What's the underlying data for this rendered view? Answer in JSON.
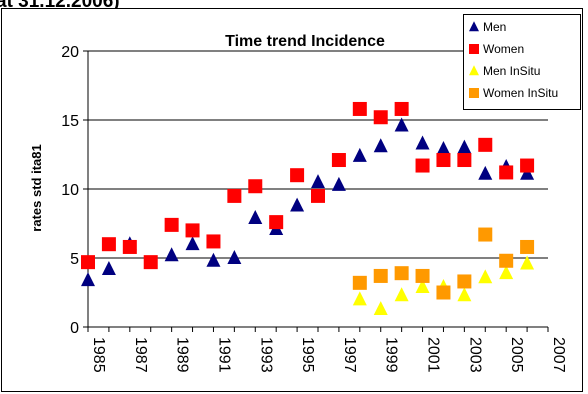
{
  "header": {
    "clipped_text": "at 31.12.2006)"
  },
  "chart_data": {
    "type": "scatter",
    "title": "Time trend Incidence",
    "ylabel": "rates std ita81",
    "xlabel": "",
    "ylim": [
      0,
      20
    ],
    "xlim": [
      1985,
      2007
    ],
    "y_ticks": [
      "0",
      "5",
      "10",
      "15",
      "20"
    ],
    "x_ticks": [
      "1985",
      "1987",
      "1989",
      "1991",
      "1993",
      "1995",
      "1997",
      "1999",
      "2001",
      "2003",
      "2005",
      "2007"
    ],
    "grid": "horizontal",
    "legend_position": "top-right",
    "series": [
      {
        "name": "Men",
        "marker": "triangle",
        "color": "#000080",
        "x": [
          1985,
          1986,
          1987,
          1989,
          1990,
          1991,
          1992,
          1993,
          1994,
          1995,
          1996,
          1997,
          1998,
          1999,
          2000,
          2001,
          2002,
          2003,
          2004,
          2005,
          2006
        ],
        "y": [
          3.4,
          4.2,
          6.0,
          5.2,
          6.0,
          4.8,
          5.0,
          7.9,
          7.1,
          8.8,
          10.5,
          10.3,
          12.4,
          13.1,
          14.6,
          13.3,
          12.9,
          13.0,
          11.1,
          11.6,
          11.1
        ]
      },
      {
        "name": "Women",
        "marker": "square",
        "color": "#ff0000",
        "x": [
          1985,
          1986,
          1987,
          1988,
          1989,
          1990,
          1991,
          1992,
          1993,
          1994,
          1995,
          1996,
          1997,
          1998,
          1999,
          2000,
          2001,
          2002,
          2003,
          2004,
          2005,
          2006
        ],
        "y": [
          4.7,
          6.0,
          5.8,
          4.7,
          7.4,
          7.0,
          6.2,
          9.5,
          10.2,
          7.6,
          11.0,
          9.5,
          12.1,
          15.8,
          15.2,
          15.8,
          11.7,
          12.1,
          12.1,
          13.2,
          11.2,
          11.7
        ]
      },
      {
        "name": "Men InSitu",
        "marker": "triangle",
        "color": "#ffff00",
        "x": [
          1998,
          1999,
          2000,
          2001,
          2002,
          2003,
          2004,
          2005,
          2006
        ],
        "y": [
          2.0,
          1.3,
          2.3,
          2.9,
          2.9,
          2.3,
          3.6,
          3.9,
          4.6
        ]
      },
      {
        "name": "Women InSitu",
        "marker": "square",
        "color": "#ff9900",
        "x": [
          1998,
          1999,
          2000,
          2001,
          2002,
          2003,
          2004,
          2005,
          2006
        ],
        "y": [
          3.2,
          3.7,
          3.9,
          3.7,
          2.5,
          3.3,
          6.7,
          4.8,
          5.8
        ]
      }
    ]
  }
}
